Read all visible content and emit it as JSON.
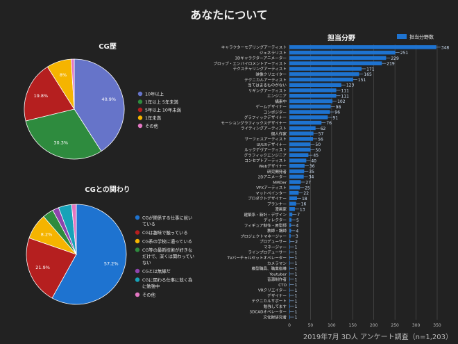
{
  "page": {
    "title": "あなたについて",
    "footer": "2019年7月 3D人 アンケート調査（n=1,203）",
    "bg_color": "#222222"
  },
  "chart_data": [
    {
      "type": "pie",
      "title": "CG歴",
      "slices": [
        {
          "label": "10年以上",
          "value": 40.9,
          "color": "#6674c9"
        },
        {
          "label": "1年以上 5年未満",
          "value": 30.3,
          "color": "#2e8b3e"
        },
        {
          "label": "5年以上 10年未満",
          "value": 19.8,
          "color": "#b51f1f"
        },
        {
          "label": "1年未満",
          "value": 8.0,
          "color": "#f5b400"
        },
        {
          "label": "その他",
          "value": 1.0,
          "color": "#e377c2"
        }
      ],
      "data_labels": [
        "40.9%",
        "30.3%",
        "19.8%",
        "8%",
        ""
      ],
      "legend_position": "right"
    },
    {
      "type": "pie",
      "title": "CGとの関わり",
      "slices": [
        {
          "label": "CGが関係する仕事に就いている",
          "value": 57.2,
          "color": "#1e73d0"
        },
        {
          "label": "CGは趣味で触っている",
          "value": 21.9,
          "color": "#b51f1f"
        },
        {
          "label": "CG系の学校に通っている",
          "value": 8.2,
          "color": "#f5b400"
        },
        {
          "label": "CG等の最新技術が好きなだけで、深くは関わっていない",
          "value": 3.5,
          "color": "#2e8b3e"
        },
        {
          "label": "CGとは無縁だ",
          "value": 2.0,
          "color": "#8e44ad"
        },
        {
          "label": "CGに関わる仕事に就く為に勉強中",
          "value": 4.2,
          "color": "#17a2b8"
        },
        {
          "label": "その他",
          "value": 1.5,
          "color": "#e377c2"
        }
      ],
      "data_labels": [
        "57.2%",
        "21.9%",
        "8.2%",
        "",
        "",
        "",
        ""
      ],
      "legend_position": "right"
    },
    {
      "type": "bar",
      "orientation": "horizontal",
      "title": "担当分野",
      "legend": "担当分野数",
      "legend_position": "top-right",
      "color": "#1e73d0",
      "xlim": [
        0,
        350
      ],
      "xticks": [
        0,
        50,
        100,
        150,
        200,
        250,
        300,
        350
      ],
      "grid": true,
      "categories": [
        "キャラクターモデリングアーティスト",
        "ジェネラリスト",
        "3Dキャラクターアニメーター",
        "プロップ・エンバイロメントアーティスト",
        "テクスチャリングアーティスト",
        "映像クリエイター",
        "テクニカルアーティスト",
        "当てはまるものがない",
        "リギングアーティスト",
        "エンジニア",
        "構素中",
        "ゲームデザイナー",
        "コンポジター",
        "グラフィックデザイナー",
        "モーショングラフィックスデザイナー",
        "ライティングアーティスト",
        "個人作家",
        "サーフェスアーティスト",
        "UI/UXデザイナー",
        "ルックデヴアーティスト",
        "グラフィックエンジニア",
        "コンセプトアーティスト",
        "Webデザイナー",
        "研究開発者",
        "2Dアニメーター",
        "MMDer",
        "VFXアーティスト",
        "マットペインター",
        "プロダクトデザイナー",
        "プランナー",
        "漫画家",
        "建築系・新計・デザイン",
        "ディレクター",
        "フィギュア制作・原型師",
        "教師・講師",
        "プロジェクトマネージャー",
        "プロデューサー",
        "マネージャー",
        "ラインプロデューサー",
        "TVバーチャルセットオペレーター",
        "カメラマン",
        "模型職員、職業指導",
        "Youtuber",
        "音源制作者",
        "CTO",
        "VRクリエイター",
        "デザイナー",
        "テクニカルサポート",
        "勉強してます",
        "3DCADオペレーター",
        "文化財研究者"
      ],
      "values": [
        348,
        251,
        229,
        219,
        171,
        165,
        151,
        123,
        111,
        111,
        102,
        98,
        96,
        91,
        76,
        62,
        57,
        56,
        50,
        50,
        45,
        40,
        36,
        35,
        34,
        27,
        25,
        22,
        18,
        16,
        13,
        7,
        5,
        4,
        4,
        3,
        2,
        1,
        1,
        1,
        1,
        1,
        1,
        1,
        1,
        1,
        1,
        1,
        1,
        1,
        1
      ]
    }
  ]
}
